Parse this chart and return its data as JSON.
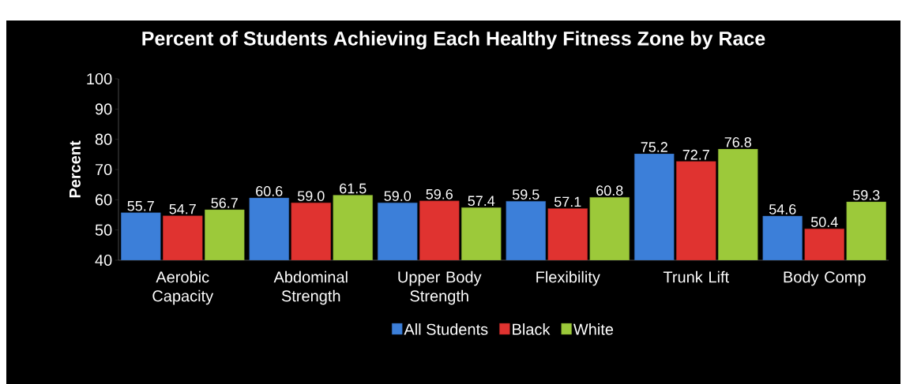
{
  "chart_data": {
    "type": "bar",
    "title": "Percent of Students Achieving Each Healthy Fitness Zone by Race",
    "ylabel": "Percent",
    "categories": [
      "Aerobic Capacity",
      "Abdominal Strength",
      "Upper Body Strength",
      "Flexibility",
      "Trunk Lift",
      "Body Comp"
    ],
    "series": [
      {
        "name": "All Students",
        "color": "#3c7fd9",
        "values": [
          55.7,
          60.6,
          59.0,
          59.5,
          75.2,
          54.6
        ],
        "value_labels": [
          "55.7",
          "60.6",
          "59.0",
          "59.5",
          "75.2",
          "54.6"
        ]
      },
      {
        "name": "Black",
        "color": "#e03330",
        "values": [
          54.7,
          59.0,
          59.6,
          57.1,
          72.7,
          50.4
        ],
        "value_labels": [
          "54.7",
          "59.0",
          "59.6",
          "57.1",
          "72.7",
          "50.4"
        ]
      },
      {
        "name": "White",
        "color": "#9cc93a",
        "values": [
          56.7,
          61.5,
          57.4,
          60.8,
          76.8,
          59.3
        ],
        "value_labels": [
          "56.7",
          "61.5",
          "57.4",
          "60.8",
          "76.8",
          "59.3"
        ]
      }
    ],
    "ylim": [
      40,
      100
    ],
    "yticks": [
      40,
      50,
      60,
      70,
      80,
      90,
      100
    ],
    "grid": false,
    "legend": "bottom"
  }
}
